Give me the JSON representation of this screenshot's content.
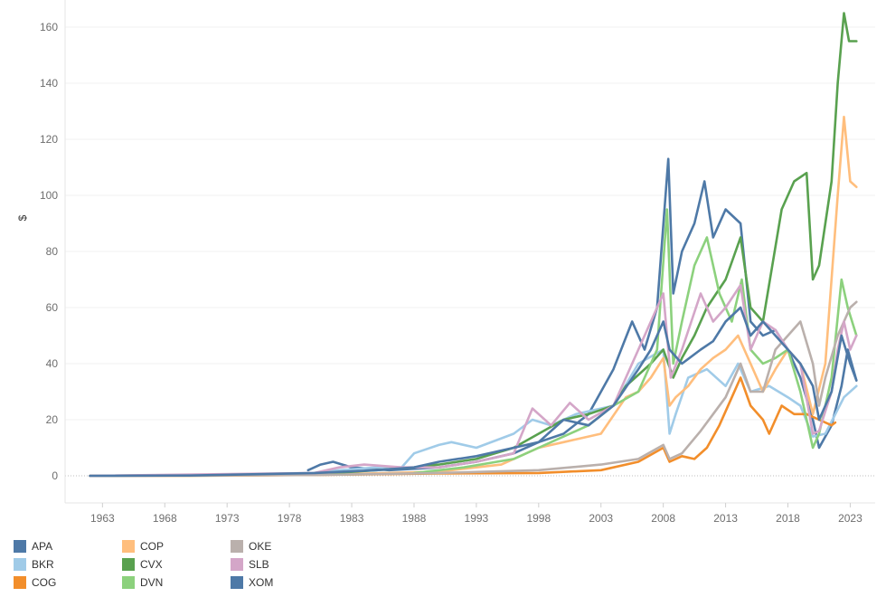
{
  "chart_data": {
    "type": "line",
    "title": "",
    "xlabel": "",
    "ylabel": "$",
    "xlim": [
      1960,
      2025
    ],
    "ylim": [
      -10,
      170
    ],
    "x_ticks": [
      "1963",
      "1968",
      "1973",
      "1978",
      "1983",
      "1988",
      "1993",
      "1998",
      "2003",
      "2008",
      "2013",
      "2018",
      "2023"
    ],
    "y_ticks": [
      "0",
      "20",
      "40",
      "60",
      "80",
      "100",
      "120",
      "140",
      "160"
    ],
    "grid": true,
    "legend_position": "bottom-left",
    "series": [
      {
        "name": "APA",
        "color": "#4e79a7",
        "x": [
          1979.5,
          1980.5,
          1981.5,
          1983,
          1986,
          1990,
          1993,
          1996,
          1998,
          2000,
          2002,
          2004,
          2005.5,
          2006.5,
          2007.5,
          2008.4,
          2008.8,
          2009.5,
          2010.5,
          2011.3,
          2012,
          2013,
          2014.2,
          2015,
          2016,
          2017,
          2018,
          2019,
          2020,
          2020.5,
          2021.5,
          2022.3,
          2022.8,
          2023.5
        ],
        "y": [
          2,
          4,
          5,
          3,
          2,
          3,
          5,
          8,
          12,
          15,
          22,
          38,
          55,
          45,
          60,
          113,
          65,
          80,
          90,
          105,
          85,
          95,
          90,
          55,
          50,
          52,
          45,
          35,
          20,
          10,
          18,
          32,
          45,
          34
        ]
      },
      {
        "name": "BKR",
        "color": "#a0cbe8",
        "x": [
          1979,
          1982,
          1985,
          1987,
          1988,
          1990,
          1991,
          1993,
          1996,
          1997.5,
          1999,
          2001,
          2004,
          2006,
          2008,
          2008.5,
          2009,
          2010,
          2011.5,
          2013,
          2014,
          2015,
          2016.5,
          2018,
          2019,
          2020,
          2021,
          2022.5,
          2023.5
        ],
        "y": [
          0.5,
          2,
          3,
          3,
          8,
          11,
          12,
          10,
          15,
          20,
          18,
          22,
          25,
          40,
          45,
          15,
          22,
          35,
          38,
          32,
          40,
          30,
          32,
          28,
          25,
          14,
          15,
          28,
          32
        ]
      },
      {
        "name": "COG",
        "color": "#f28e2b",
        "x": [
          1962,
          1970,
          1980,
          1990,
          1998,
          2003,
          2006,
          2008,
          2008.5,
          2009.5,
          2010.5,
          2011.5,
          2012.5,
          2013.5,
          2014.2,
          2015,
          2016,
          2016.5,
          2017.5,
          2018.5,
          2019.5,
          2020.5,
          2021.5,
          2021.8
        ],
        "y": [
          0,
          0,
          0.3,
          0.8,
          1,
          2,
          5,
          10,
          5,
          7,
          6,
          10,
          18,
          28,
          35,
          25,
          20,
          15,
          25,
          22,
          22,
          20,
          18,
          19
        ]
      },
      {
        "name": "COP",
        "color": "#ffbe7d",
        "x": [
          1962,
          1980,
          1990,
          1995,
          1998,
          2000,
          2003,
          2005,
          2006,
          2007,
          2008,
          2008.5,
          2009,
          2010,
          2011,
          2012,
          2013,
          2014,
          2015,
          2016,
          2017,
          2018,
          2019,
          2020,
          2021,
          2022,
          2022.5,
          2023,
          2023.5
        ],
        "y": [
          0,
          0.3,
          1.5,
          4,
          10,
          12,
          15,
          28,
          30,
          35,
          42,
          25,
          28,
          32,
          38,
          42,
          45,
          50,
          40,
          30,
          38,
          45,
          40,
          22,
          40,
          100,
          128,
          105,
          103
        ]
      },
      {
        "name": "CVX",
        "color": "#59a14f",
        "x": [
          1962,
          1980,
          1985,
          1988,
          1990,
          1993,
          1996,
          1998,
          2000,
          2002,
          2004,
          2005,
          2007,
          2008,
          2008.8,
          2009.5,
          2010.5,
          2011.5,
          2013,
          2014.2,
          2015,
          2016,
          2017.5,
          2018.5,
          2019.5,
          2020,
          2020.5,
          2021,
          2021.5,
          2022,
          2022.5,
          2022.9,
          2023.5
        ],
        "y": [
          0,
          0.5,
          2,
          3,
          4,
          6,
          10,
          15,
          20,
          22,
          25,
          32,
          40,
          45,
          35,
          42,
          50,
          60,
          70,
          85,
          60,
          55,
          95,
          105,
          108,
          70,
          75,
          90,
          105,
          140,
          165,
          155,
          155
        ]
      },
      {
        "name": "DVN",
        "color": "#8cd17d",
        "x": [
          1988,
          1992,
          1996,
          1998,
          2000,
          2002,
          2004,
          2006,
          2007.5,
          2008.3,
          2008.8,
          2009.5,
          2010.5,
          2011.5,
          2012.5,
          2013.5,
          2014.3,
          2015,
          2016,
          2017,
          2018,
          2019,
          2020,
          2020.5,
          2021.5,
          2022.3,
          2022.8,
          2023.5
        ],
        "y": [
          1,
          3,
          6,
          10,
          14,
          18,
          25,
          30,
          45,
          95,
          40,
          55,
          75,
          85,
          65,
          55,
          70,
          45,
          40,
          42,
          45,
          30,
          10,
          15,
          35,
          70,
          60,
          50
        ]
      },
      {
        "name": "OKE",
        "color": "#bab0ac",
        "x": [
          1962,
          1980,
          1990,
          1998,
          2003,
          2006,
          2008,
          2008.5,
          2009.5,
          2011,
          2012,
          2013,
          2014.2,
          2015,
          2016,
          2017,
          2018,
          2019,
          2020,
          2020.5,
          2021,
          2022,
          2023,
          2023.5
        ],
        "y": [
          0,
          0.3,
          1,
          2,
          4,
          6,
          11,
          6,
          8,
          16,
          22,
          28,
          40,
          30,
          30,
          45,
          50,
          55,
          40,
          25,
          35,
          50,
          60,
          62
        ]
      },
      {
        "name": "SLB",
        "color": "#d4a6c8",
        "x": [
          1962,
          1980,
          1982,
          1984,
          1987,
          1990,
          1993,
          1996,
          1997.5,
          1999,
          2000.5,
          2002,
          2004,
          2006,
          2008,
          2008.6,
          2009.5,
          2011,
          2012,
          2013,
          2014.2,
          2015,
          2016,
          2017,
          2018,
          2019,
          2020,
          2020.5,
          2021.5,
          2022,
          2022.5,
          2023,
          2023.5
        ],
        "y": [
          0,
          1,
          3,
          4,
          3,
          3,
          5,
          8,
          24,
          18,
          26,
          20,
          25,
          45,
          65,
          35,
          45,
          65,
          55,
          60,
          68,
          45,
          55,
          52,
          45,
          40,
          15,
          16,
          30,
          45,
          55,
          45,
          50
        ]
      },
      {
        "name": "XOM",
        "color": "#4e79a7",
        "x": [
          1962,
          1970,
          1980,
          1985,
          1988,
          1990,
          1993,
          1996,
          1998,
          2000,
          2002,
          2004,
          2006,
          2007,
          2008,
          2008.5,
          2009.5,
          2011,
          2012,
          2013,
          2014.2,
          2015,
          2016,
          2017,
          2018,
          2019,
          2020,
          2020.5,
          2021.5,
          2022.3,
          2023,
          2023.5
        ],
        "y": [
          0,
          0.1,
          1,
          2,
          3,
          5,
          7,
          10,
          12,
          20,
          18,
          25,
          38,
          45,
          55,
          45,
          40,
          45,
          48,
          55,
          60,
          50,
          55,
          50,
          45,
          40,
          32,
          20,
          30,
          50,
          40,
          34
        ]
      }
    ]
  }
}
